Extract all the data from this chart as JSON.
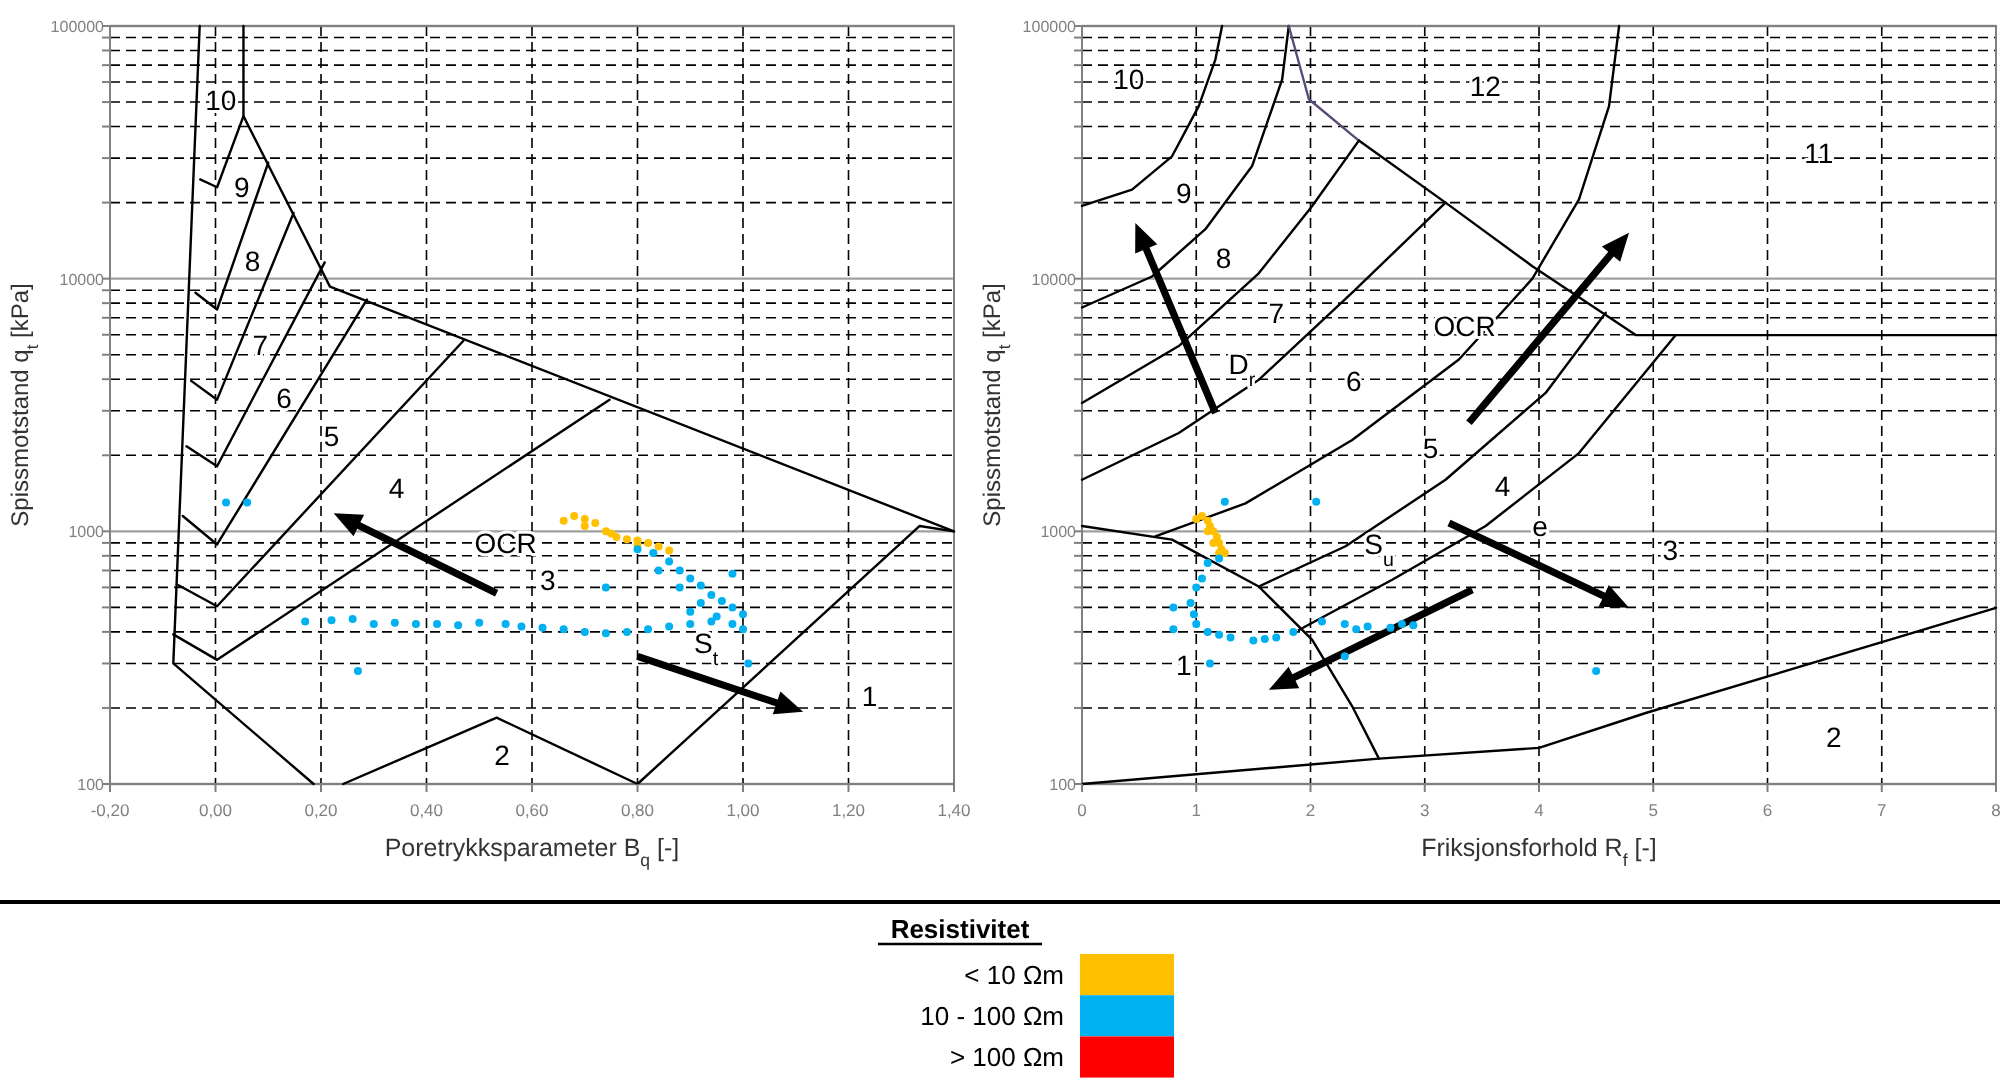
{
  "chart_data": [
    {
      "type": "scatter",
      "xlabel": "Poretrykksparameter B$_{q}$ [-]",
      "ylabel": "Spissmotstand q$_{t}$ [kPa]",
      "legend_title": "Resistivitet",
      "legend": "bottom",
      "log": "y",
      "grid": true,
      "xlim": [
        -0.2,
        1.4
      ],
      "xticks": [
        {
          "value": -0.2,
          "label": "-0,20"
        },
        {
          "value": 0,
          "label": "0,00"
        },
        {
          "value": 0.2,
          "label": "0,20"
        },
        {
          "value": 0.4,
          "label": "0,40"
        },
        {
          "value": 0.6,
          "label": "0,60"
        },
        {
          "value": 0.8,
          "label": "0,80"
        },
        {
          "value": 1.0,
          "label": "1,00"
        },
        {
          "value": 1.2,
          "label": "1,20"
        },
        {
          "value": 1.4,
          "label": "1,40"
        }
      ],
      "ylim": [
        100,
        100000
      ],
      "yticks": [
        100,
        {
          "value": 200,
          "label": null
        },
        {
          "value": 300,
          "label": null
        },
        {
          "value": 400,
          "label": null
        },
        {
          "value": 500,
          "label": null
        },
        {
          "value": 600,
          "label": null
        },
        {
          "value": 700,
          "label": null
        },
        {
          "value": 800,
          "label": null
        },
        {
          "value": 900,
          "label": null
        },
        1000,
        {
          "value": 2000,
          "label": null
        },
        {
          "value": 3000,
          "label": null
        },
        {
          "value": 4000,
          "label": null
        },
        {
          "value": 5000,
          "label": null
        },
        {
          "value": 6000,
          "label": null
        },
        {
          "value": 7000,
          "label": null
        },
        {
          "value": 8000,
          "label": null
        },
        {
          "value": 9000,
          "label": null
        },
        10000,
        {
          "value": 20000,
          "label": null
        },
        {
          "value": 30000,
          "label": null
        },
        {
          "value": 40000,
          "label": null
        },
        {
          "value": 50000,
          "label": null
        },
        {
          "value": 60000,
          "label": null
        },
        {
          "value": 70000,
          "label": null
        },
        {
          "value": 80000,
          "label": null
        },
        {
          "value": 90000,
          "label": null
        },
        100000
      ],
      "series": [
        {
          "type": "scatter",
          "marker": "circle",
          "name": "< 10 Ωm",
          "color": "#ffc000",
          "x": [
            0.66,
            0.68,
            0.7,
            0.72,
            0.74,
            0.76,
            0.78,
            0.8,
            0.82,
            0.84,
            0.86,
            0.7,
            0.75,
            0.8
          ],
          "values": [
            1100,
            1150,
            1120,
            1080,
            1000,
            950,
            930,
            920,
            900,
            870,
            840,
            1050,
            980,
            880
          ]
        },
        {
          "type": "scatter",
          "marker": "circle",
          "name": "10 - 100 Ωm",
          "color": "#00b0f0",
          "x": [
            0.17,
            0.22,
            0.26,
            0.3,
            0.34,
            0.38,
            0.42,
            0.46,
            0.5,
            0.55,
            0.58,
            0.62,
            0.66,
            0.7,
            0.74,
            0.78,
            0.82,
            0.86,
            0.9,
            0.94,
            0.98,
            1.0,
            0.8,
            0.83,
            0.86,
            0.88,
            0.9,
            0.92,
            0.94,
            0.96,
            0.98,
            1.0,
            0.84,
            0.88,
            0.92,
            0.95,
            0.9,
            0.98,
            0.74,
            0.27,
            1.01,
            0.02,
            0.06
          ],
          "values": [
            440,
            445,
            450,
            430,
            435,
            430,
            430,
            425,
            435,
            430,
            420,
            415,
            410,
            400,
            395,
            400,
            410,
            420,
            430,
            440,
            430,
            410,
            850,
            820,
            760,
            700,
            650,
            610,
            560,
            530,
            500,
            470,
            700,
            600,
            520,
            460,
            480,
            680,
            600,
            280,
            300,
            1300,
            1300
          ]
        },
        {
          "type": "scatter",
          "name": "> 100 Ωm",
          "color": "#ff0000"
        },
        {
          "type": "line",
          "color": "#000000",
          "x": [
            -0.03,
            -0.08,
            0.186
          ],
          "values": [
            100000,
            300,
            100
          ]
        },
        {
          "type": "line",
          "color": "#000000",
          "x": [
            0.242,
            0.533,
            0.8,
            1.335,
            1.4
          ],
          "values": [
            100,
            183,
            100,
            1050,
            1000
          ]
        },
        {
          "type": "line",
          "color": "#000000",
          "x": [
            1.4,
            0.217,
            0.053,
            0.053
          ],
          "values": [
            1000,
            9300,
            44000,
            100000
          ]
        },
        {
          "type": "line",
          "color": "#000000",
          "x": [
            -0.029,
            0.003,
            0.053
          ],
          "values": [
            24700,
            23000,
            44000
          ]
        },
        {
          "type": "line",
          "color": "#000000",
          "x": [
            -0.038,
            0.003,
            0.1
          ],
          "values": [
            8800,
            7550,
            28800
          ]
        },
        {
          "type": "line",
          "color": "#000000",
          "x": [
            -0.046,
            0.003,
            0.148
          ],
          "values": [
            3940,
            3320,
            18200
          ]
        },
        {
          "type": "line",
          "color": "#000000",
          "x": [
            -0.055,
            0.003,
            0.207
          ],
          "values": [
            2170,
            1810,
            11600
          ]
        },
        {
          "type": "line",
          "color": "#000000",
          "x": [
            -0.062,
            0.003,
            0.287
          ],
          "values": [
            1150,
            887,
            8260
          ]
        },
        {
          "type": "line",
          "color": "#000000",
          "x": [
            -0.07,
            0.003,
            0.47
          ],
          "values": [
            612,
            505,
            5680
          ]
        },
        {
          "type": "line",
          "color": "#000000",
          "x": [
            -0.08,
            0.003,
            0.747
          ],
          "values": [
            391,
            310,
            3320
          ]
        }
      ],
      "annotations": [
        "10",
        "9",
        "8",
        "7",
        "6",
        "5",
        "4",
        "3",
        "2",
        "1",
        "OCR",
        "S$_{t}$"
      ]
    },
    {
      "type": "scatter",
      "xlabel": "Friksjonsforhold R$_{f}$ [-]",
      "ylabel": "Spissmotstand q$_{t}$ [kPa]",
      "log": "y",
      "grid": true,
      "xlim": [
        0,
        8
      ],
      "xticks": [
        0,
        1,
        2,
        3,
        4,
        5,
        6,
        7,
        8
      ],
      "ylim": [
        100,
        100000
      ],
      "yticks": [
        100,
        {
          "value": 200,
          "label": null
        },
        {
          "value": 300,
          "label": null
        },
        {
          "value": 400,
          "label": null
        },
        {
          "value": 500,
          "label": null
        },
        {
          "value": 600,
          "label": null
        },
        {
          "value": 700,
          "label": null
        },
        {
          "value": 800,
          "label": null
        },
        {
          "value": 900,
          "label": null
        },
        1000,
        {
          "value": 2000,
          "label": null
        },
        {
          "value": 3000,
          "label": null
        },
        {
          "value": 4000,
          "label": null
        },
        {
          "value": 5000,
          "label": null
        },
        {
          "value": 6000,
          "label": null
        },
        {
          "value": 7000,
          "label": null
        },
        {
          "value": 8000,
          "label": null
        },
        {
          "value": 9000,
          "label": null
        },
        10000,
        {
          "value": 20000,
          "label": null
        },
        {
          "value": 30000,
          "label": null
        },
        {
          "value": 40000,
          "label": null
        },
        {
          "value": 50000,
          "label": null
        },
        {
          "value": 60000,
          "label": null
        },
        {
          "value": 70000,
          "label": null
        },
        {
          "value": 80000,
          "label": null
        },
        {
          "value": 90000,
          "label": null
        },
        100000
      ],
      "series": [
        {
          "type": "scatter",
          "marker": "circle",
          "color": "#ffc000",
          "x": [
            1.0,
            1.05,
            1.1,
            1.12,
            1.15,
            1.18,
            1.2,
            1.22,
            1.25,
            1.1,
            1.15,
            1.2
          ],
          "values": [
            1120,
            1150,
            1100,
            1050,
            1000,
            950,
            900,
            850,
            820,
            1000,
            900,
            820
          ]
        },
        {
          "type": "scatter",
          "marker": "circle",
          "color": "#00b0f0",
          "x": [
            1.2,
            1.1,
            1.05,
            1.0,
            0.95,
            0.98,
            1.0,
            1.1,
            1.2,
            1.3,
            1.5,
            1.6,
            1.7,
            1.85,
            2.1,
            2.3,
            2.5,
            2.7,
            2.9,
            2.4,
            2.8,
            1.25,
            2.05,
            0.8,
            0.8,
            1.12,
            2.3,
            4.5
          ],
          "values": [
            780,
            750,
            650,
            600,
            520,
            470,
            430,
            400,
            390,
            380,
            370,
            375,
            380,
            400,
            440,
            430,
            420,
            415,
            425,
            410,
            430,
            1310,
            1310,
            500,
            410,
            300,
            320,
            280
          ]
        },
        {
          "type": "line",
          "color": "#000000",
          "x": [
            0,
            0.438,
            0.788,
            1.022,
            1.168,
            1.226
          ],
          "values": [
            19400,
            22500,
            30500,
            48200,
            73800,
            100000
          ]
        },
        {
          "type": "line",
          "color": "#000000",
          "x": [
            0,
            0.613,
            1.08,
            1.489,
            1.752,
            1.81
          ],
          "values": [
            7690,
            10200,
            15700,
            27900,
            61500,
            100000
          ]
        },
        {
          "type": "line",
          "color": "#000000",
          "x": [
            0,
            0.847,
            1.547,
            2.015,
            2.423
          ],
          "values": [
            3220,
            5410,
            10500,
            19400,
            35200
          ]
        },
        {
          "type": "line",
          "color": "#5a4a78",
          "x": [
            1.81,
            1.986,
            2.423
          ],
          "values": [
            100000,
            51300,
            35200
          ]
        },
        {
          "type": "line",
          "color": "#000000",
          "x": [
            0,
            0.847,
            1.547,
            2.365,
            3.182
          ],
          "values": [
            1600,
            2450,
            3980,
            8800,
            20000
          ]
        },
        {
          "type": "line",
          "color": "#000000",
          "x": [
            2.423,
            3.182,
            3.942,
            4.847,
            8
          ],
          "values": [
            35200,
            20000,
            11200,
            5980,
            5980
          ]
        },
        {
          "type": "line",
          "color": "#000000",
          "x": [
            0.642,
            1.431,
            2.365,
            3.299,
            3.942,
            4.35,
            4.613,
            4.701
          ],
          "values": [
            955,
            1290,
            2300,
            4790,
            10000,
            20600,
            48200,
            100000
          ]
        },
        {
          "type": "line",
          "color": "#000000",
          "x": [
            1.547,
            2.307,
            3.182,
            4.058,
            4.584
          ],
          "values": [
            605,
            873,
            1600,
            3530,
            7330
          ]
        },
        {
          "type": "line",
          "color": "#000000",
          "x": [
            1.898,
            2.715,
            3.533,
            4.35,
            5.197
          ],
          "values": [
            407,
            643,
            1050,
            2040,
            5980
          ]
        },
        {
          "type": "line",
          "color": "#000000",
          "x": [
            0,
            0.788,
            1.547,
            2.015,
            2.365,
            2.599
          ],
          "values": [
            1050,
            927,
            605,
            372,
            203,
            126
          ]
        },
        {
          "type": "line",
          "color": "#000000",
          "x": [
            0,
            2.599,
            4,
            4.934,
            8
          ],
          "values": [
            100,
            126,
            139,
            191,
            498
          ]
        }
      ],
      "annotations": [
        "10",
        "12",
        "11",
        "9",
        "8",
        "7",
        "6",
        "5",
        "4",
        "3",
        "2",
        "1",
        "e",
        "D$_{r}$",
        "OCR",
        "S$_{u}$"
      ]
    }
  ]
}
